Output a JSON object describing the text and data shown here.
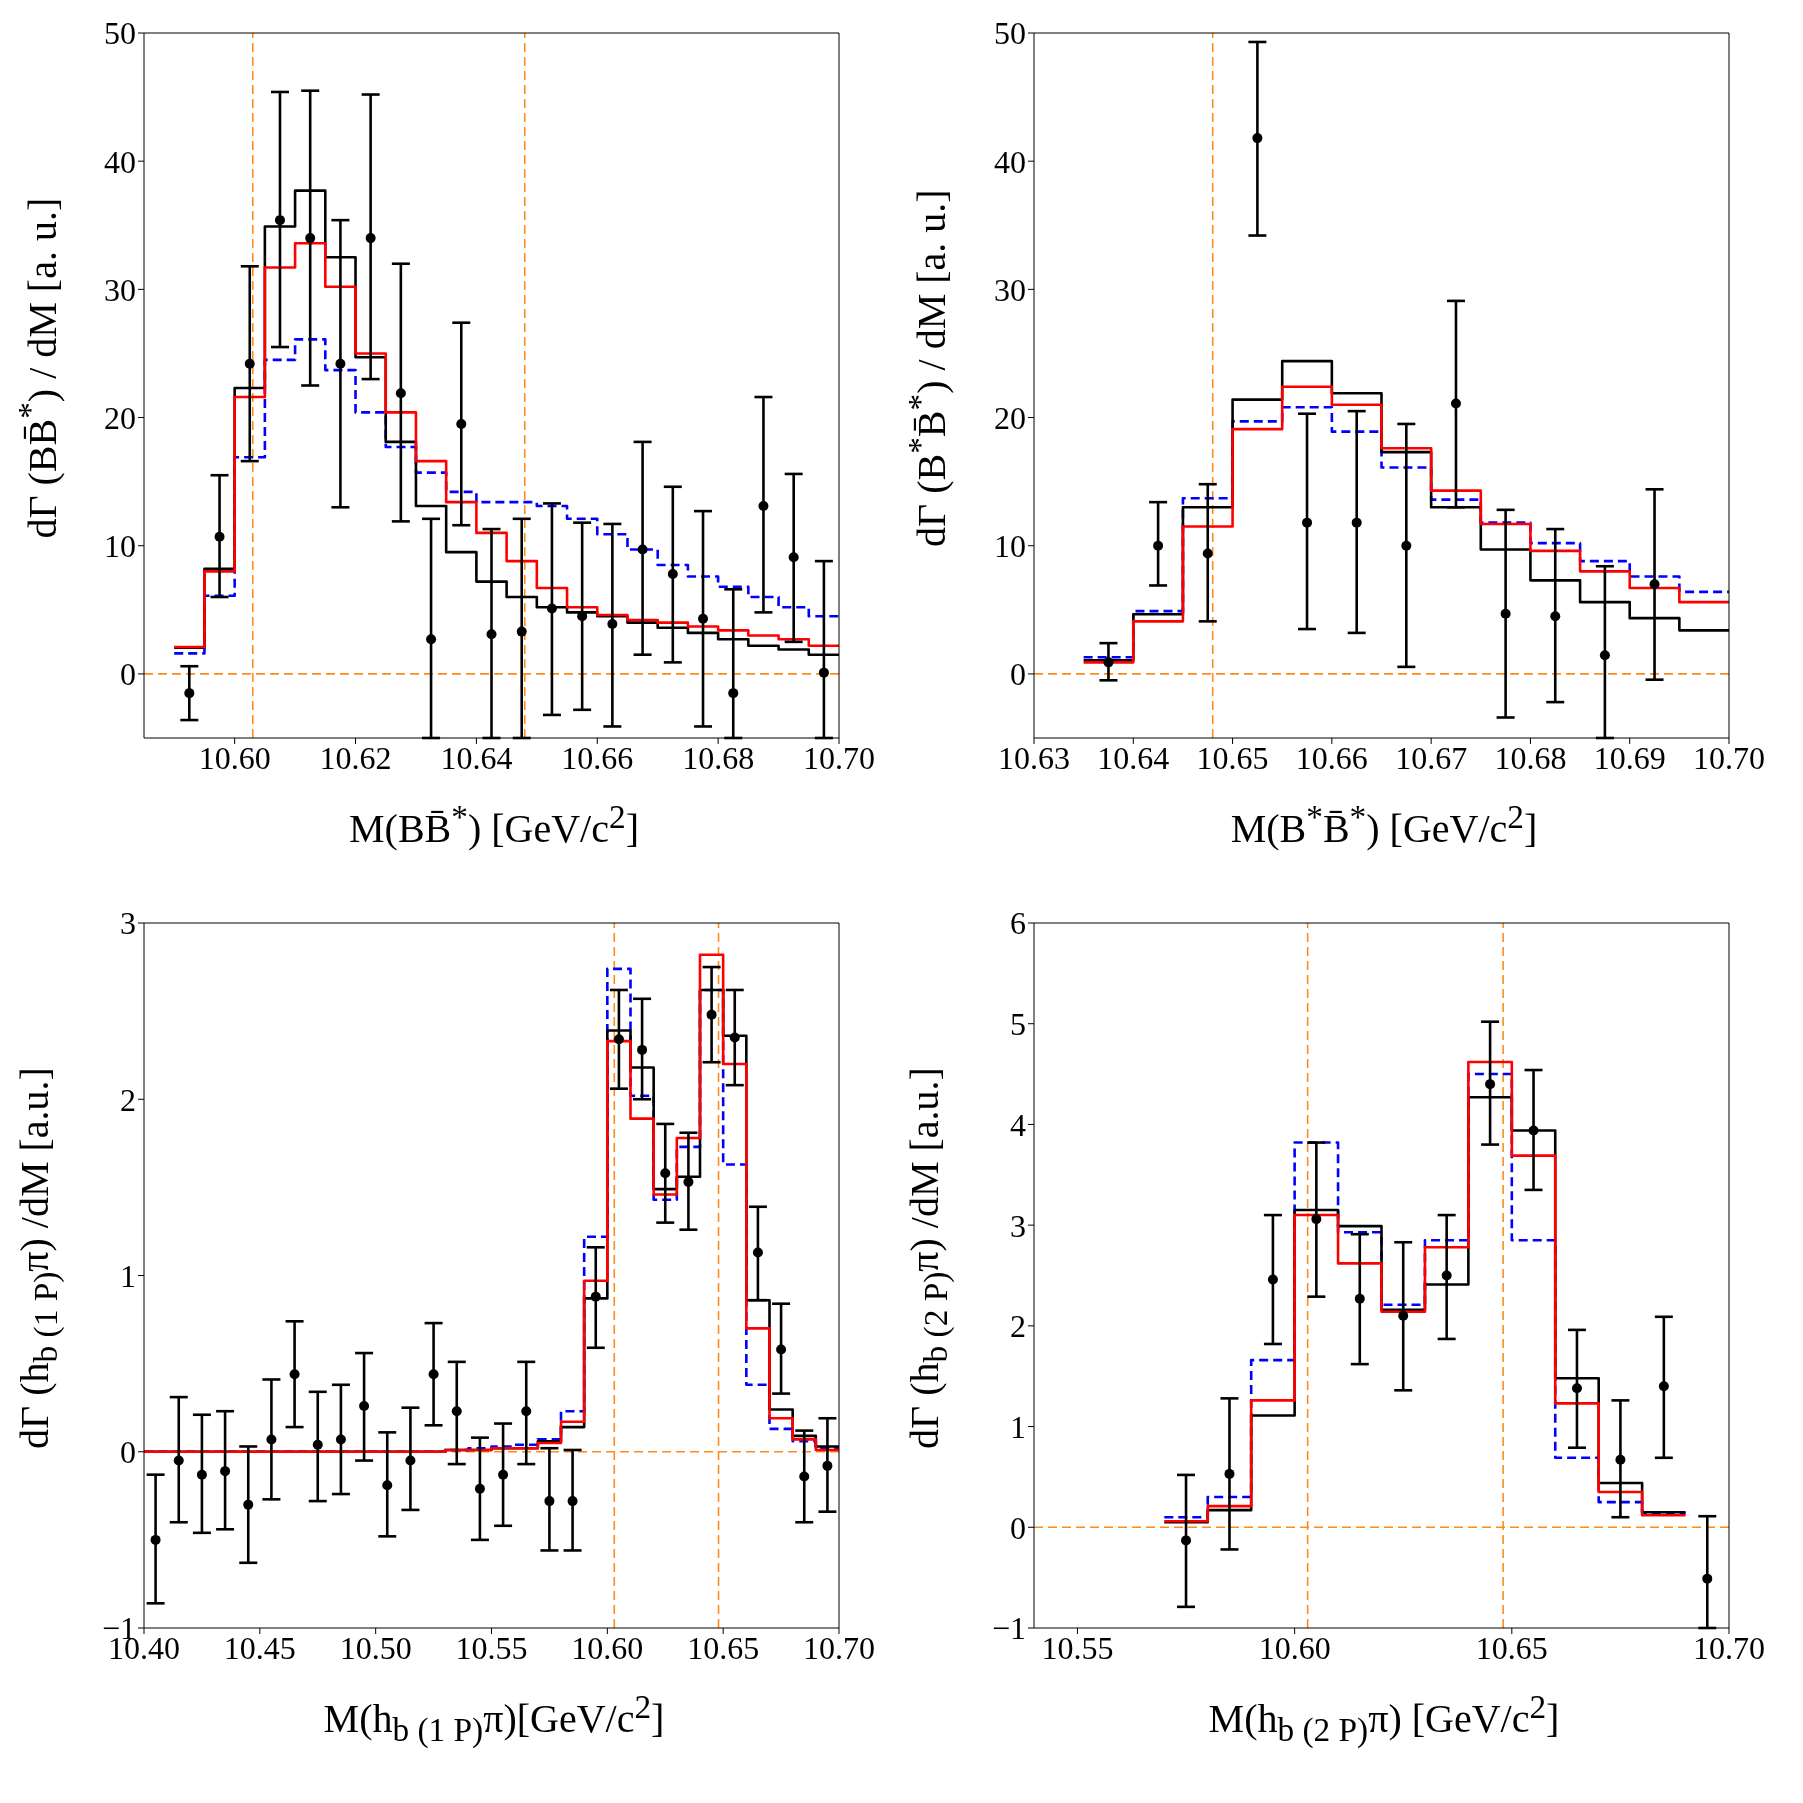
{
  "chart_data": [
    {
      "type": "histogram",
      "xlabel": "M(BB̄$^{*}$)  [GeV/c$^{2}$]",
      "ylabel": "dΓ (BB̄$^{*}$) / dM   [a. u.]",
      "xlim": [
        10.585,
        10.7
      ],
      "xticks": [
        {
          "value": 10.6,
          "label": "10.60"
        },
        10.62,
        10.64,
        10.66,
        10.68,
        {
          "value": 10.7,
          "label": "10.70"
        }
      ],
      "ylim": [
        -5,
        50
      ],
      "yticks": [
        0,
        10,
        20,
        30,
        40,
        50
      ],
      "bins": [
        10.59,
        10.595,
        10.6,
        10.605,
        10.61,
        10.615,
        10.62,
        10.625,
        10.63,
        10.635,
        10.64,
        10.645,
        10.65,
        10.655,
        10.66,
        10.665,
        10.67,
        10.675,
        10.68,
        10.685,
        10.69,
        10.695,
        10.7
      ],
      "series": [
        {
          "color": "#0000ff",
          "line_style": "dashed",
          "values": [
            1.6,
            6.1,
            16.9,
            24.5,
            26.1,
            23.7,
            20.4,
            17.7,
            15.7,
            14.2,
            13.4,
            13.4,
            13.1,
            12.1,
            10.9,
            9.7,
            8.5,
            7.6,
            6.8,
            6.0,
            5.2,
            4.5
          ]
        },
        {
          "color": "#000000",
          "values": [
            2.05,
            8.2,
            22.3,
            34.9,
            37.7,
            32.5,
            24.7,
            18.1,
            13.1,
            9.5,
            7.2,
            6.0,
            5.2,
            4.8,
            4.5,
            4.0,
            3.6,
            3.2,
            2.7,
            2.2,
            1.9,
            1.5
          ]
        },
        {
          "color": "#ff0000",
          "values": [
            2.1,
            8.0,
            21.6,
            31.7,
            33.6,
            30.2,
            25.0,
            20.4,
            16.6,
            13.4,
            11.0,
            8.8,
            6.7,
            5.2,
            4.6,
            4.2,
            4.0,
            3.7,
            3.4,
            3.0,
            2.7,
            2.2
          ]
        },
        {
          "type": "scatter",
          "color": "#000000",
          "marker": "circle",
          "x": [
            10.5925,
            10.5975,
            10.6025,
            10.6075,
            10.6125,
            10.6175,
            10.6225,
            10.6275,
            10.6325,
            10.6375,
            10.6425,
            10.6475,
            10.6525,
            10.6575,
            10.6625,
            10.6675,
            10.6725,
            10.6775,
            10.6825,
            10.6875,
            10.6925,
            10.6975
          ],
          "values": [
            -1.5,
            10.7,
            24.2,
            35.4,
            34.0,
            24.2,
            34.0,
            21.9,
            2.7,
            19.5,
            3.1,
            3.3,
            5.1,
            4.5,
            3.9,
            9.7,
            7.8,
            4.3,
            -1.5,
            13.1,
            9.1,
            0.1
          ],
          "errors": [
            [
              -3.6,
              0.6
            ],
            [
              6.0,
              15.5
            ],
            [
              16.6,
              31.8
            ],
            [
              25.5,
              45.4
            ],
            [
              22.5,
              45.5
            ],
            [
              13.0,
              35.4
            ],
            [
              23.0,
              45.2
            ],
            [
              11.9,
              32.0
            ],
            [
              -5,
              12.1
            ],
            [
              11.6,
              27.4
            ],
            [
              -5,
              11.3
            ],
            [
              -5,
              12.1
            ],
            [
              -3.2,
              13.3
            ],
            [
              -2.8,
              11.8
            ],
            [
              -4.1,
              11.7
            ],
            [
              1.5,
              18.1
            ],
            [
              0.9,
              14.6
            ],
            [
              -4.1,
              12.7
            ],
            [
              -5,
              6.6
            ],
            [
              4.8,
              21.6
            ],
            [
              2.5,
              15.6
            ],
            [
              -5,
              8.8
            ]
          ]
        }
      ],
      "ref_lines": [
        {
          "axis": "x",
          "value": 10.603,
          "color": "#ff8c1a",
          "line_style": "dashed"
        },
        {
          "axis": "x",
          "value": 10.648,
          "color": "#ff8c1a",
          "line_style": "dashed"
        },
        {
          "axis": "y",
          "value": 0,
          "color": "#ff8c1a",
          "line_style": "dashed"
        }
      ]
    },
    {
      "type": "histogram",
      "xlabel": "M(B$^{*}$B̄$^{*}$) [GeV/c$^{2}$]",
      "ylabel": "dΓ (B$^{*}$B̄$^{*}$) / dM   [a. u.]",
      "xlim": [
        10.63,
        10.7
      ],
      "xticks": [
        10.63,
        10.64,
        10.65,
        10.66,
        10.67,
        10.68,
        10.69,
        {
          "value": 10.7,
          "label": "10.70"
        }
      ],
      "ylim": [
        -5,
        50
      ],
      "yticks": [
        0,
        10,
        20,
        30,
        40,
        50
      ],
      "bins": [
        10.635,
        10.64,
        10.645,
        10.65,
        10.655,
        10.66,
        10.665,
        10.67,
        10.675,
        10.68,
        10.685,
        10.69,
        10.695,
        10.7
      ],
      "series": [
        {
          "color": "#0000ff",
          "line_style": "dashed",
          "values": [
            1.3,
            4.9,
            13.7,
            19.7,
            20.8,
            18.9,
            16.1,
            13.6,
            11.8,
            10.2,
            8.8,
            7.6,
            6.4
          ]
        },
        {
          "color": "#000000",
          "values": [
            1.07,
            4.65,
            13.0,
            21.4,
            24.4,
            21.9,
            17.3,
            13.0,
            9.7,
            7.3,
            5.6,
            4.35,
            3.4
          ]
        },
        {
          "color": "#ff0000",
          "values": [
            0.9,
            4.1,
            11.5,
            19.1,
            22.4,
            21.0,
            17.6,
            14.3,
            11.7,
            9.6,
            8.0,
            6.7,
            5.6
          ]
        },
        {
          "type": "scatter",
          "color": "#000000",
          "marker": "circle",
          "x": [
            10.6375,
            10.6425,
            10.6475,
            10.6525,
            10.6575,
            10.6625,
            10.6675,
            10.6725,
            10.6775,
            10.6825,
            10.6875,
            10.6925
          ],
          "values": [
            0.9,
            10.0,
            9.4,
            41.8,
            11.8,
            11.8,
            10.0,
            21.1,
            4.7,
            4.5,
            1.45,
            7.0
          ],
          "errors": [
            [
              -0.5,
              2.4
            ],
            [
              6.9,
              13.4
            ],
            [
              4.1,
              14.8
            ],
            [
              34.2,
              49.3
            ],
            [
              3.5,
              20.3
            ],
            [
              3.2,
              20.5
            ],
            [
              0.55,
              19.5
            ],
            [
              13.0,
              29.1
            ],
            [
              -3.4,
              12.8
            ],
            [
              -2.2,
              11.3
            ],
            [
              -5,
              8.4
            ],
            [
              -0.45,
              14.4
            ]
          ]
        }
      ],
      "ref_lines": [
        {
          "axis": "x",
          "value": 10.648,
          "color": "#ff8c1a",
          "line_style": "dashed"
        },
        {
          "axis": "y",
          "value": 0,
          "color": "#ff8c1a",
          "line_style": "dashed"
        }
      ]
    },
    {
      "type": "histogram",
      "xlabel": "M(h$_{b (1 P)}$π)[GeV/c$^{2}$]",
      "ylabel": "dΓ (h$_{b (1 P)}$π) /dM   [a.u.]",
      "xlim": [
        10.4,
        10.7
      ],
      "xticks": [
        {
          "value": 10.4,
          "label": "10.40"
        },
        10.45,
        {
          "value": 10.5,
          "label": "10.50"
        },
        10.55,
        {
          "value": 10.6,
          "label": "10.60"
        },
        10.65,
        {
          "value": 10.7,
          "label": "10.70"
        }
      ],
      "ylim": [
        -1,
        3
      ],
      "yticks": [
        {
          "value": -1,
          "label": "−1"
        },
        0,
        1,
        2,
        3
      ],
      "bins": [
        10.4,
        10.41,
        10.42,
        10.43,
        10.44,
        10.45,
        10.46,
        10.47,
        10.48,
        10.49,
        10.5,
        10.51,
        10.52,
        10.53,
        10.54,
        10.55,
        10.56,
        10.57,
        10.58,
        10.59,
        10.6,
        10.61,
        10.62,
        10.63,
        10.64,
        10.65,
        10.66,
        10.67,
        10.68,
        10.69,
        10.7
      ],
      "series": [
        {
          "color": "#0000ff",
          "line_style": "dashed",
          "values": [
            0,
            0,
            0,
            0,
            0,
            0,
            0,
            0,
            0,
            0,
            0,
            0,
            0,
            0.01,
            0.02,
            0.03,
            0.04,
            0.07,
            0.23,
            1.22,
            2.74,
            2.02,
            1.43,
            1.73,
            2.62,
            1.63,
            0.38,
            0.13,
            0.06,
            0.02
          ]
        },
        {
          "color": "#000000",
          "values": [
            0,
            0,
            0,
            0,
            0,
            0,
            0,
            0,
            0,
            0,
            0,
            0,
            0,
            0.01,
            0.01,
            0.02,
            0.02,
            0.06,
            0.14,
            0.87,
            2.39,
            2.18,
            1.49,
            1.56,
            2.62,
            2.36,
            0.86,
            0.24,
            0.09,
            0.03
          ]
        },
        {
          "color": "#ff0000",
          "values": [
            0,
            0,
            0,
            0,
            0,
            0,
            0,
            0,
            0,
            0,
            0,
            0,
            0,
            0.01,
            0.01,
            0.02,
            0.02,
            0.05,
            0.17,
            0.97,
            2.33,
            1.89,
            1.46,
            1.78,
            2.82,
            2.2,
            0.7,
            0.19,
            0.07,
            0.01
          ]
        },
        {
          "type": "scatter",
          "color": "#000000",
          "marker": "circle",
          "x": [
            10.405,
            10.415,
            10.425,
            10.435,
            10.445,
            10.455,
            10.465,
            10.475,
            10.485,
            10.495,
            10.505,
            10.515,
            10.525,
            10.535,
            10.545,
            10.555,
            10.565,
            10.575,
            10.585,
            10.595,
            10.605,
            10.615,
            10.625,
            10.635,
            10.645,
            10.655,
            10.665,
            10.675,
            10.685,
            10.695
          ],
          "values": [
            -0.5,
            -0.05,
            -0.13,
            -0.11,
            -0.3,
            0.07,
            0.44,
            0.04,
            0.07,
            0.26,
            -0.19,
            -0.05,
            0.44,
            0.23,
            -0.21,
            -0.13,
            0.23,
            -0.28,
            -0.28,
            0.88,
            2.34,
            2.28,
            1.58,
            1.53,
            2.48,
            2.35,
            1.13,
            0.58,
            -0.14,
            -0.08
          ],
          "errors": [
            [
              -0.86,
              -0.13
            ],
            [
              -0.4,
              0.31
            ],
            [
              -0.46,
              0.21
            ],
            [
              -0.44,
              0.23
            ],
            [
              -0.63,
              0.03
            ],
            [
              -0.27,
              0.41
            ],
            [
              0.14,
              0.74
            ],
            [
              -0.28,
              0.34
            ],
            [
              -0.24,
              0.38
            ],
            [
              -0.05,
              0.56
            ],
            [
              -0.48,
              0.11
            ],
            [
              -0.33,
              0.25
            ],
            [
              0.15,
              0.73
            ],
            [
              -0.07,
              0.51
            ],
            [
              -0.5,
              0.08
            ],
            [
              -0.42,
              0.16
            ],
            [
              -0.07,
              0.51
            ],
            [
              -0.56,
              0.02
            ],
            [
              -0.56,
              0.01
            ],
            [
              0.59,
              1.16
            ],
            [
              2.06,
              2.62
            ],
            [
              2.0,
              2.57
            ],
            [
              1.3,
              1.86
            ],
            [
              1.26,
              1.81
            ],
            [
              2.21,
              2.75
            ],
            [
              2.08,
              2.62
            ],
            [
              0.86,
              1.39
            ],
            [
              0.33,
              0.84
            ],
            [
              -0.4,
              0.12
            ],
            [
              -0.34,
              0.19
            ]
          ]
        }
      ],
      "ref_lines": [
        {
          "axis": "x",
          "value": 10.603,
          "color": "#ff8c1a",
          "line_style": "dashed"
        },
        {
          "axis": "x",
          "value": 10.648,
          "color": "#ff8c1a",
          "line_style": "dashed"
        },
        {
          "axis": "y",
          "value": 0,
          "color": "#ff8c1a",
          "line_style": "dashed"
        }
      ]
    },
    {
      "type": "histogram",
      "xlabel": "M(h$_{b (2 P)}$π)  [GeV/c$^{2}$]",
      "ylabel": "dΓ (h$_{b (2 P)}$π) /dM   [a.u.]",
      "xlim": [
        10.54,
        10.7
      ],
      "xticks": [
        10.55,
        {
          "value": 10.6,
          "label": "10.60"
        },
        10.65,
        {
          "value": 10.7,
          "label": "10.70"
        }
      ],
      "ylim": [
        -1,
        6
      ],
      "yticks": [
        {
          "value": -1,
          "label": "−1"
        },
        0,
        1,
        2,
        3,
        4,
        5,
        6
      ],
      "bins": [
        10.57,
        10.58,
        10.59,
        10.6,
        10.61,
        10.62,
        10.63,
        10.64,
        10.65,
        10.66,
        10.67,
        10.68,
        10.69
      ],
      "series": [
        {
          "color": "#0000ff",
          "line_style": "dashed",
          "values": [
            0.1,
            0.3,
            1.66,
            3.82,
            2.93,
            2.21,
            2.85,
            4.5,
            2.85,
            0.69,
            0.25,
            0.14
          ]
        },
        {
          "color": "#000000",
          "values": [
            0.05,
            0.17,
            1.11,
            3.15,
            2.99,
            2.16,
            2.41,
            4.27,
            3.94,
            1.48,
            0.44,
            0.15
          ]
        },
        {
          "color": "#ff0000",
          "values": [
            0.06,
            0.21,
            1.26,
            3.1,
            2.62,
            2.14,
            2.78,
            4.62,
            3.69,
            1.23,
            0.35,
            0.12
          ]
        },
        {
          "type": "scatter",
          "color": "#000000",
          "marker": "circle",
          "x": [
            10.575,
            10.585,
            10.595,
            10.605,
            10.615,
            10.625,
            10.635,
            10.645,
            10.655,
            10.665,
            10.675,
            10.685,
            10.695
          ],
          "values": [
            -0.13,
            0.53,
            2.46,
            3.06,
            2.27,
            2.1,
            2.5,
            4.4,
            3.94,
            1.38,
            0.67,
            1.4,
            -0.51
          ],
          "errors": [
            [
              -0.79,
              0.52
            ],
            [
              -0.22,
              1.28
            ],
            [
              1.82,
              3.1
            ],
            [
              2.29,
              3.82
            ],
            [
              1.62,
              2.91
            ],
            [
              1.36,
              2.83
            ],
            [
              1.87,
              3.1
            ],
            [
              3.8,
              5.02
            ],
            [
              3.35,
              4.54
            ],
            [
              0.79,
              1.96
            ],
            [
              0.1,
              1.26
            ],
            [
              0.69,
              2.09
            ],
            [
              -1,
              0.11
            ]
          ]
        }
      ],
      "ref_lines": [
        {
          "axis": "x",
          "value": 10.603,
          "color": "#ff8c1a",
          "line_style": "dashed"
        },
        {
          "axis": "x",
          "value": 10.648,
          "color": "#ff8c1a",
          "line_style": "dashed"
        },
        {
          "axis": "y",
          "value": 0,
          "color": "#ff8c1a",
          "line_style": "dashed"
        }
      ]
    }
  ]
}
